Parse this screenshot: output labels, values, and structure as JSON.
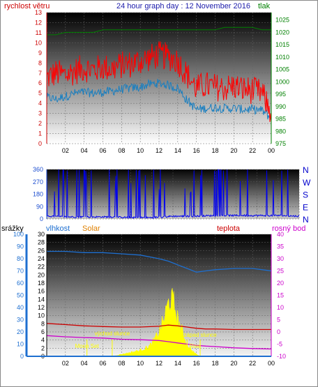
{
  "header": {
    "left_label": "rychlost větru",
    "title": "24 hour graph day : 12 November 2016",
    "right_label": "tlak"
  },
  "bottom_header": {
    "srazky": "srážky",
    "vlhkost": "vlhkost",
    "solar": "Solar",
    "teplota": "teplota",
    "rosny_bod": "rosný bod"
  },
  "colors": {
    "wind_gust": "#ff0000",
    "wind_avg": "#1a7fc0",
    "pressure": "#008000",
    "direction": "#0000ee",
    "humidity": "#1e6fd0",
    "temperature": "#cc0000",
    "dewpoint": "#cc00cc",
    "solar": "#ffff00",
    "axis_left": "#cc0000",
    "axis_right_top": "#008000",
    "axis_humidity": "#1e6fd0",
    "axis_bottom_right": "#cc00cc"
  },
  "chart_data": [
    {
      "type": "line",
      "name": "wind",
      "x_ticks": [
        "02",
        "04",
        "06",
        "08",
        "10",
        "12",
        "14",
        "16",
        "18",
        "20",
        "22",
        "00"
      ],
      "y_left_ticks": [
        0,
        1,
        2,
        3,
        4,
        5,
        6,
        7,
        8,
        9,
        10,
        11,
        12,
        13
      ],
      "y_left_range": [
        0,
        13
      ],
      "y_right_ticks": [
        975,
        980,
        985,
        990,
        995,
        1000,
        1005,
        1010,
        1015,
        1020,
        1025
      ],
      "y_right_range": [
        975,
        1028
      ],
      "x_range_hours": [
        0,
        24
      ],
      "series": [
        {
          "name": "rychlost větru",
          "x": [
            0,
            1,
            2,
            3,
            4,
            5,
            6,
            7,
            8,
            9,
            10,
            11,
            12,
            13,
            14,
            15,
            16,
            17,
            18,
            19,
            20,
            21,
            22,
            23,
            24
          ],
          "values": [
            6.5,
            7.0,
            6.8,
            7.2,
            7.5,
            7.3,
            7.6,
            7.4,
            7.8,
            7.9,
            8.2,
            8.5,
            8.8,
            8.6,
            8.2,
            6.8,
            5.5,
            5.8,
            5.6,
            5.5,
            5.7,
            5.4,
            5.3,
            5.0,
            3.0
          ]
        },
        {
          "name": "",
          "x": [
            0,
            1,
            2,
            3,
            4,
            5,
            6,
            7,
            8,
            9,
            10,
            11,
            12,
            13,
            14,
            15,
            16,
            17,
            18,
            19,
            20,
            21,
            22,
            23,
            24
          ],
          "values": [
            4.6,
            4.4,
            4.7,
            5.0,
            5.1,
            5.0,
            5.1,
            5.2,
            5.4,
            5.5,
            5.6,
            5.9,
            6.0,
            5.8,
            5.5,
            4.3,
            3.4,
            3.5,
            3.6,
            3.5,
            3.5,
            3.4,
            3.4,
            3.3,
            2.5
          ]
        },
        {
          "name": "tlak",
          "x": [
            0,
            1,
            2,
            3,
            4,
            5,
            6,
            7,
            8,
            9,
            10,
            11,
            12,
            13,
            14,
            15,
            16,
            17,
            18,
            19,
            20,
            21,
            22,
            23,
            24
          ],
          "values": [
            1019,
            1019,
            1020,
            1020,
            1020,
            1020,
            1021,
            1021,
            1021,
            1021,
            1021,
            1021,
            1021,
            1021,
            1021,
            1021,
            1021,
            1021,
            1021,
            1022,
            1022,
            1022,
            1022,
            1021,
            1021
          ]
        }
      ]
    },
    {
      "type": "line",
      "name": "direction",
      "x_ticks": [],
      "y_ticks": [
        0,
        90,
        180,
        270,
        360
      ],
      "y_range": [
        0,
        360
      ],
      "compass_labels": [
        "N",
        "W",
        "S",
        "E",
        "N"
      ],
      "series": [
        {
          "name": "",
          "x": [
            0,
            2,
            4,
            6,
            8,
            10,
            12,
            14,
            16,
            18,
            20,
            22,
            24
          ],
          "values": [
            20,
            15,
            15,
            15,
            10,
            10,
            20,
            20,
            25,
            25,
            25,
            25,
            20
          ]
        }
      ]
    },
    {
      "type": "line",
      "name": "temperature-humidity",
      "x_ticks": [
        "02",
        "04",
        "06",
        "08",
        "10",
        "12",
        "14",
        "16",
        "18",
        "20",
        "22",
        "00"
      ],
      "y_left_ticks": [
        0,
        10,
        20,
        30,
        40,
        50,
        60,
        70,
        80,
        90,
        100
      ],
      "y_left_range": [
        0,
        100
      ],
      "y_rain_ticks": [
        0,
        2,
        4,
        6,
        8,
        10,
        12,
        14,
        16,
        18,
        20,
        22,
        24,
        26,
        28,
        30
      ],
      "y_rain_range": [
        0,
        30
      ],
      "y_right_ticks": [
        -10,
        -5,
        0,
        5,
        10,
        15,
        20,
        25,
        30,
        35,
        40
      ],
      "y_right_range": [
        -10,
        40
      ],
      "annotations": [
        {
          "text": "východ slunce",
          "x": 7.0
        },
        {
          "text": "západ slunce",
          "x": 16.4
        },
        {
          "text": "Moon Set",
          "x": 4.3
        },
        {
          "text": "Moon Rise",
          "x": 15.0
        }
      ],
      "series": [
        {
          "name": "vlhkost",
          "x": [
            0,
            2,
            4,
            6,
            8,
            10,
            12,
            13,
            14,
            15,
            16,
            17,
            18,
            20,
            22,
            24
          ],
          "values": [
            86,
            86,
            85,
            85,
            84,
            83,
            80,
            78,
            75,
            72,
            69,
            70,
            71,
            72,
            72,
            70
          ]
        },
        {
          "name": "teplota",
          "x": [
            0,
            2,
            4,
            6,
            8,
            10,
            12,
            13,
            14,
            15,
            16,
            17,
            18,
            20,
            22,
            24
          ],
          "values": [
            3.5,
            3.0,
            2.5,
            2.2,
            2.0,
            2.0,
            2.3,
            2.8,
            2.5,
            2.0,
            1.5,
            1.2,
            1.2,
            1.0,
            1.0,
            1.0
          ]
        },
        {
          "name": "rosný bod",
          "x": [
            0,
            2,
            4,
            6,
            8,
            10,
            12,
            13,
            14,
            15,
            16,
            17,
            18,
            20,
            22,
            24
          ],
          "values": [
            -1.5,
            -2.0,
            -2.3,
            -2.5,
            -3.0,
            -3.2,
            -3.5,
            -4.0,
            -4.5,
            -5.0,
            -5.5,
            -5.8,
            -6.0,
            -6.5,
            -6.8,
            -7.0
          ]
        },
        {
          "name": "Solar",
          "x": [
            7.0,
            8,
            9,
            10,
            11,
            11.5,
            12,
            12.5,
            13,
            13.3,
            13.6,
            14,
            14.5,
            15,
            15.5,
            16,
            16.4
          ],
          "values": [
            0,
            0.5,
            1,
            1.5,
            2.5,
            4,
            6,
            9,
            13,
            14,
            13,
            9,
            6,
            3,
            1.5,
            0.5,
            0
          ]
        }
      ]
    }
  ]
}
